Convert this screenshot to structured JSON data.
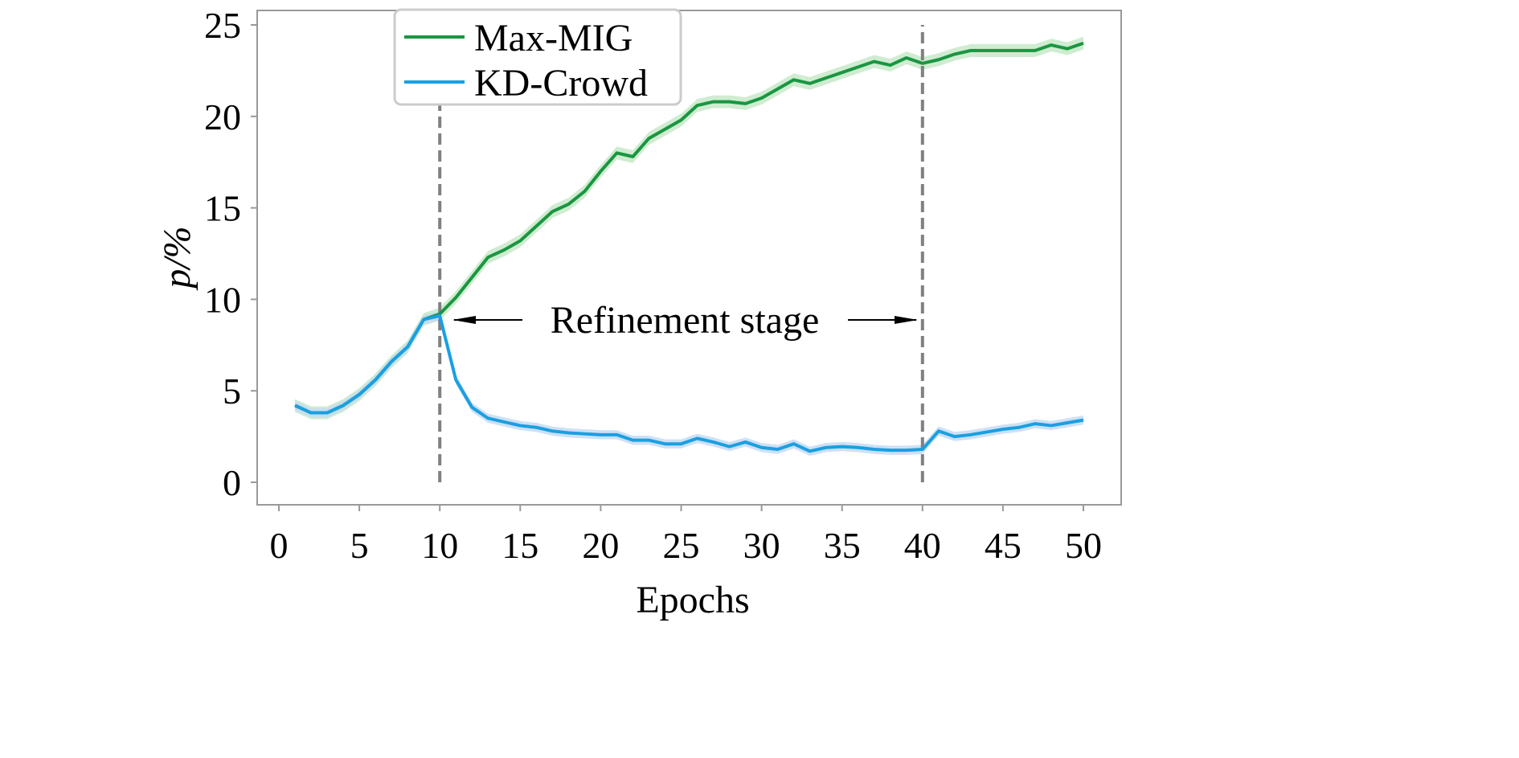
{
  "chart_data": {
    "type": "line",
    "title": "",
    "xlabel": "Epochs",
    "ylabel": "p/%",
    "xlim": [
      -1.3,
      52.3
    ],
    "ylim": [
      -1.2,
      26.3
    ],
    "xticks": [
      0,
      5,
      10,
      15,
      20,
      25,
      30,
      35,
      40,
      45,
      50
    ],
    "yticks": [
      0,
      5,
      10,
      15,
      20,
      25
    ],
    "grid": false,
    "legend_position": "top-center",
    "series": [
      {
        "name": "Max-MIG",
        "color": "#1a9641",
        "band_color": "#c7e9c8",
        "band": 0.35,
        "x": [
          1,
          2,
          3,
          4,
          5,
          6,
          7,
          8,
          9,
          10,
          11,
          12,
          13,
          14,
          15,
          16,
          17,
          18,
          19,
          20,
          21,
          22,
          23,
          24,
          25,
          26,
          27,
          28,
          29,
          30,
          31,
          32,
          33,
          34,
          35,
          36,
          37,
          38,
          39,
          40,
          41,
          42,
          43,
          44,
          45,
          46,
          47,
          48,
          49,
          50
        ],
        "y": [
          4.2,
          3.8,
          3.8,
          4.2,
          4.8,
          5.6,
          6.6,
          7.4,
          8.9,
          9.2,
          10.1,
          11.2,
          12.3,
          12.7,
          13.2,
          14.0,
          14.8,
          15.2,
          15.9,
          17.0,
          18.0,
          17.8,
          18.8,
          19.3,
          19.8,
          20.6,
          20.8,
          20.8,
          20.7,
          21.0,
          21.5,
          22.0,
          21.8,
          22.1,
          22.4,
          22.7,
          23.0,
          22.8,
          23.2,
          22.9,
          23.1,
          23.4,
          23.6,
          23.6,
          23.6,
          23.6,
          23.6,
          23.9,
          23.7,
          24.0
        ]
      },
      {
        "name": "KD-Crowd",
        "color": "#1aa0e0",
        "band_color": "#c6daf5",
        "band": 0.25,
        "x": [
          1,
          2,
          3,
          4,
          5,
          6,
          7,
          8,
          9,
          10,
          11,
          12,
          13,
          14,
          15,
          16,
          17,
          18,
          19,
          20,
          21,
          22,
          23,
          24,
          25,
          26,
          27,
          28,
          29,
          30,
          31,
          32,
          33,
          34,
          35,
          36,
          37,
          38,
          39,
          40,
          41,
          42,
          43,
          44,
          45,
          46,
          47,
          48,
          49,
          50
        ],
        "y": [
          4.2,
          3.8,
          3.8,
          4.2,
          4.8,
          5.6,
          6.6,
          7.4,
          8.9,
          9.1,
          5.6,
          4.1,
          3.5,
          3.3,
          3.1,
          3.0,
          2.8,
          2.7,
          2.65,
          2.6,
          2.6,
          2.3,
          2.3,
          2.1,
          2.1,
          2.4,
          2.2,
          1.95,
          2.2,
          1.9,
          1.8,
          2.1,
          1.7,
          1.9,
          1.95,
          1.9,
          1.8,
          1.75,
          1.75,
          1.8,
          2.8,
          2.5,
          2.6,
          2.75,
          2.9,
          3.0,
          3.2,
          3.1,
          3.25,
          3.4
        ]
      }
    ],
    "vlines": [
      10,
      40
    ],
    "annotation": {
      "text": "Refinement stage",
      "from": 10,
      "to": 40,
      "y": 8.9
    }
  }
}
